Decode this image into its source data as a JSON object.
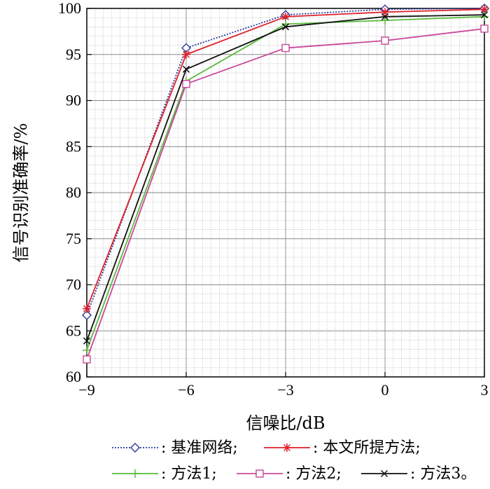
{
  "chart_data": {
    "type": "line",
    "xlabel": "信噪比/dB",
    "ylabel": "信号识别准确率/%",
    "xlim": [
      -9,
      3
    ],
    "ylim": [
      60,
      100
    ],
    "x": [
      -9,
      -6,
      -3,
      0,
      3
    ],
    "xticks": [
      "−9",
      "−6",
      "−3",
      "0",
      "3"
    ],
    "yticks": [
      "60",
      "65",
      "70",
      "75",
      "80",
      "85",
      "90",
      "95",
      "100"
    ],
    "grid": true,
    "legend_position": "bottom",
    "series": [
      {
        "name": "基准网络",
        "legend_label": ": 基准网络;",
        "values": [
          66.7,
          95.7,
          99.3,
          99.9,
          100.0
        ],
        "color": "#2b3a9c",
        "marker": "diamond",
        "dash": "2,2"
      },
      {
        "name": "本文所提方法",
        "legend_label": ": 本文所提方法;",
        "values": [
          67.4,
          95.0,
          99.1,
          99.6,
          99.9
        ],
        "color": "#e0202a",
        "marker": "star",
        "dash": ""
      },
      {
        "name": "方法1",
        "legend_label": ": 方法1;",
        "values": [
          62.9,
          92.1,
          98.3,
          98.7,
          99.1
        ],
        "color": "#5aba3c",
        "marker": "plus",
        "dash": ""
      },
      {
        "name": "方法2",
        "legend_label": ": 方法2;",
        "values": [
          61.9,
          91.8,
          95.7,
          96.5,
          97.8
        ],
        "color": "#c9489b",
        "marker": "square",
        "dash": ""
      },
      {
        "name": "方法3",
        "legend_label": ": 方法3。",
        "values": [
          63.9,
          93.4,
          98.0,
          99.1,
          99.3
        ],
        "color": "#111111",
        "marker": "x",
        "dash": ""
      }
    ]
  }
}
